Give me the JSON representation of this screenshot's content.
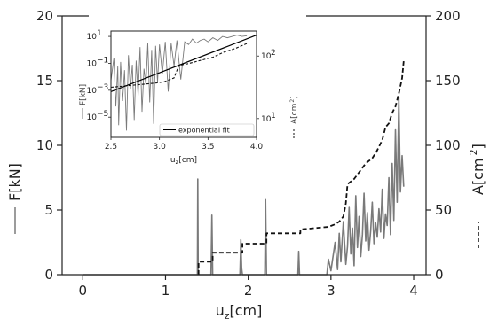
{
  "chart_data": [
    {
      "type": "line",
      "role": "main",
      "xlabel": "u",
      "xlabel_sub": "z",
      "xlabel_unit": "[cm]",
      "ylabel_left": "F[kN]",
      "ylabel_right": "A[cm",
      "ylabel_right_sup": "2",
      "ylabel_right_close": "]",
      "xlim": [
        -0.25,
        4.15
      ],
      "ylim_left": [
        0,
        20
      ],
      "ylim_right": [
        0,
        200
      ],
      "x_ticks": [
        "0",
        "1",
        "2",
        "3",
        "4"
      ],
      "y_left_ticks": [
        "0",
        "5",
        "10",
        "15",
        "20"
      ],
      "y_right_ticks": [
        "0",
        "50",
        "100",
        "150",
        "200"
      ],
      "colors": {
        "force": "#7a7a7a",
        "area": "#111111",
        "fit": "#000000",
        "axis": "#222222"
      },
      "series": [
        {
          "axis": "left",
          "style": "solid",
          "x": [
            0,
            1.385,
            1.39,
            1.395,
            1.4,
            1.55,
            1.56,
            1.57,
            1.58,
            1.9,
            1.91,
            1.92,
            1.93,
            2.0,
            2.2,
            2.21,
            2.22,
            2.23,
            2.6,
            2.61,
            2.62,
            2.63,
            2.95,
            2.97,
            3.0,
            3.05,
            3.08,
            3.1,
            3.12,
            3.15,
            3.18,
            3.2,
            3.22,
            3.24,
            3.26,
            3.28,
            3.3,
            3.32,
            3.34,
            3.36,
            3.38,
            3.4,
            3.42,
            3.44,
            3.46,
            3.48,
            3.5,
            3.52,
            3.54,
            3.56,
            3.58,
            3.6,
            3.62,
            3.64,
            3.66,
            3.68,
            3.7,
            3.72,
            3.74,
            3.76,
            3.78,
            3.8,
            3.82,
            3.84,
            3.86,
            3.88
          ],
          "y": [
            0,
            0,
            7.4,
            0,
            0,
            0,
            4.6,
            0,
            0,
            0,
            2.7,
            0.5,
            0,
            0,
            0,
            5.8,
            0,
            0,
            0,
            1.8,
            0,
            0,
            0,
            1.2,
            0.3,
            2.5,
            0.4,
            3.2,
            1.0,
            4.1,
            0.8,
            2.2,
            5.2,
            1.6,
            3.6,
            0.7,
            6.1,
            2.1,
            4.5,
            1.4,
            3.1,
            6.3,
            2.6,
            4.8,
            1.9,
            3.4,
            5.6,
            2.4,
            4.0,
            2.9,
            5.1,
            3.3,
            6.6,
            2.8,
            4.7,
            3.8,
            7.5,
            3.1,
            8.6,
            4.2,
            11.2,
            5.6,
            13.7,
            6.4,
            9.2,
            6.8
          ]
        },
        {
          "axis": "right",
          "style": "dashed",
          "x": [
            1.4,
            1.4,
            1.57,
            1.57,
            1.93,
            1.93,
            2.22,
            2.22,
            2.63,
            2.63,
            2.97,
            3.05,
            3.1,
            3.15,
            3.18,
            3.2,
            3.28,
            3.35,
            3.42,
            3.5,
            3.55,
            3.62,
            3.66,
            3.7,
            3.74,
            3.78,
            3.82,
            3.86,
            3.88
          ],
          "y": [
            0,
            10,
            10,
            17,
            17,
            24,
            24,
            32,
            32,
            35,
            37,
            39,
            41,
            45,
            55,
            70,
            74,
            80,
            86,
            90,
            95,
            104,
            114,
            117,
            125,
            130,
            140,
            152,
            165
          ]
        }
      ]
    },
    {
      "type": "line",
      "role": "inset",
      "xlabel": "u",
      "xlabel_sub": "z",
      "xlabel_unit": "[cm]",
      "ylabel_left": "F[kN]",
      "ylabel_right": "A[cm",
      "ylabel_right_sup": "2",
      "ylabel_right_close": "]",
      "xlim": [
        2.5,
        4.0
      ],
      "ylim_left_log10": [
        -6.5,
        1.4
      ],
      "ylim_right_log10": [
        0.7,
        2.4
      ],
      "x_ticks": [
        "2.5",
        "3.0",
        "3.5",
        "4.0"
      ],
      "y_left_ticks": [
        "10",
        "10",
        "10",
        "10"
      ],
      "y_left_tick_exps": [
        "1",
        "−1",
        "−3",
        "−5"
      ],
      "y_right_ticks": [
        "10",
        "10"
      ],
      "y_right_tick_exps": [
        "2",
        "1"
      ],
      "legend": [
        "exponential fit"
      ],
      "fit_line": {
        "x": [
          2.5,
          4.0
        ],
        "log10_y": [
          -3.1,
          1.1
        ]
      },
      "series": [
        {
          "axis": "left",
          "style": "solid",
          "log10_y": true,
          "x": [
            2.5,
            2.53,
            2.55,
            2.57,
            2.58,
            2.6,
            2.62,
            2.64,
            2.66,
            2.68,
            2.7,
            2.72,
            2.74,
            2.76,
            2.78,
            2.8,
            2.82,
            2.84,
            2.86,
            2.88,
            2.9,
            2.92,
            2.94,
            2.96,
            2.98,
            3.0,
            3.03,
            3.06,
            3.09,
            3.12,
            3.15,
            3.18,
            3.22,
            3.26,
            3.3,
            3.34,
            3.38,
            3.42,
            3.46,
            3.5,
            3.55,
            3.6,
            3.65,
            3.7,
            3.75,
            3.8,
            3.85,
            3.9
          ],
          "y": [
            -2.3,
            -0.6,
            -4.2,
            -1.2,
            -5.6,
            -0.9,
            -3.8,
            -1.5,
            -6.0,
            -0.4,
            -2.9,
            -1.1,
            -5.2,
            -0.8,
            -3.4,
            0.2,
            -4.6,
            -1.4,
            -2.6,
            0.5,
            -3.9,
            0.0,
            -5.5,
            0.3,
            -2.4,
            0.4,
            -1.8,
            0.6,
            -3.1,
            0.5,
            -1.2,
            0.7,
            -2.2,
            0.6,
            0.4,
            0.8,
            0.5,
            0.7,
            0.8,
            0.6,
            0.9,
            0.7,
            1.0,
            0.9,
            1.0,
            1.1,
            1.0,
            1.05
          ]
        },
        {
          "axis": "right",
          "style": "dashed",
          "log10_y": true,
          "x": [
            2.5,
            2.97,
            3.05,
            3.15,
            3.2,
            3.3,
            3.42,
            3.55,
            3.66,
            3.78,
            3.9
          ],
          "y": [
            1.5,
            1.57,
            1.59,
            1.65,
            1.85,
            1.88,
            1.93,
            1.98,
            2.06,
            2.12,
            2.2
          ]
        }
      ]
    }
  ]
}
